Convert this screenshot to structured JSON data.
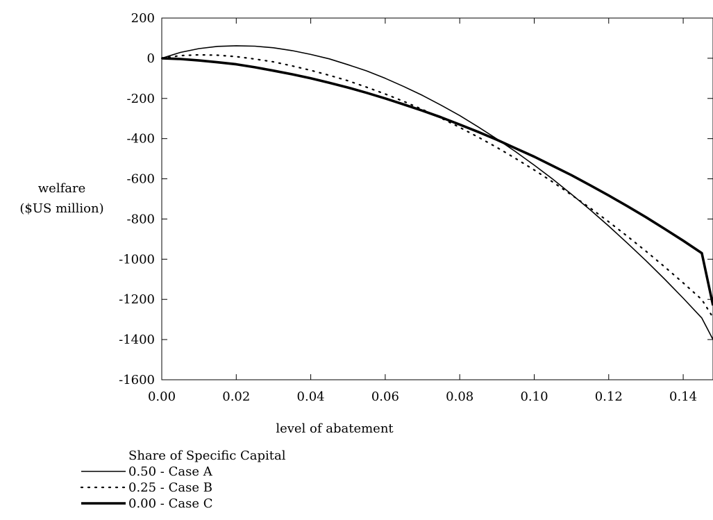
{
  "chart_data": {
    "type": "line",
    "title": "",
    "xlabel": "level of abatement",
    "ylabel_line1": "welfare",
    "ylabel_line2": "($US million)",
    "xlim": [
      0,
      0.148
    ],
    "ylim": [
      -1600,
      200
    ],
    "x_ticks": [
      0.0,
      0.02,
      0.04,
      0.06,
      0.08,
      0.1,
      0.12,
      0.14
    ],
    "x_tick_labels": [
      "0.00",
      "0.02",
      "0.04",
      "0.06",
      "0.08",
      "0.10",
      "0.12",
      "0.14"
    ],
    "y_ticks": [
      200,
      0,
      -200,
      -400,
      -600,
      -800,
      -1000,
      -1200,
      -1400,
      -1600
    ],
    "y_tick_labels": [
      "200",
      "0",
      "-200",
      "-400",
      "-600",
      "-800",
      "-1000",
      "-1200",
      "-1400",
      "-1600"
    ],
    "grid": false,
    "legend": {
      "title": "Share of Specific Capital",
      "placement": "bottom-left"
    },
    "series": [
      {
        "name": "0.50 - Case A",
        "style": "solid",
        "x": [
          0,
          0.005,
          0.01,
          0.015,
          0.02,
          0.025,
          0.03,
          0.035,
          0.04,
          0.045,
          0.05,
          0.055,
          0.06,
          0.065,
          0.07,
          0.075,
          0.08,
          0.085,
          0.09,
          0.095,
          0.1,
          0.105,
          0.11,
          0.115,
          0.12,
          0.125,
          0.13,
          0.135,
          0.14,
          0.145,
          0.148
        ],
        "values": [
          0,
          29,
          48,
          59,
          62,
          60,
          52,
          38,
          19,
          -3,
          -32,
          -63,
          -100,
          -141,
          -185,
          -234,
          -285,
          -342,
          -402,
          -465,
          -532,
          -602,
          -677,
          -754,
          -835,
          -920,
          -1007,
          -1099,
          -1194,
          -1293,
          -1400
        ]
      },
      {
        "name": "0.25 - Case B",
        "style": "dotted",
        "x": [
          0,
          0.005,
          0.01,
          0.015,
          0.02,
          0.025,
          0.03,
          0.035,
          0.04,
          0.045,
          0.05,
          0.055,
          0.06,
          0.065,
          0.07,
          0.075,
          0.08,
          0.085,
          0.09,
          0.095,
          0.1,
          0.105,
          0.11,
          0.115,
          0.12,
          0.125,
          0.13,
          0.135,
          0.14,
          0.145,
          0.148
        ],
        "values": [
          0,
          13,
          17,
          15,
          8,
          -4,
          -18,
          -38,
          -60,
          -85,
          -112,
          -144,
          -178,
          -215,
          -255,
          -298,
          -344,
          -393,
          -444,
          -499,
          -556,
          -616,
          -680,
          -745,
          -814,
          -886,
          -960,
          -1038,
          -1118,
          -1201,
          -1290
        ]
      },
      {
        "name": "0.00 - Case C",
        "style": "thick",
        "x": [
          0,
          0.005,
          0.01,
          0.015,
          0.02,
          0.025,
          0.03,
          0.035,
          0.04,
          0.045,
          0.05,
          0.055,
          0.06,
          0.065,
          0.07,
          0.075,
          0.08,
          0.085,
          0.09,
          0.095,
          0.1,
          0.105,
          0.11,
          0.115,
          0.12,
          0.125,
          0.13,
          0.135,
          0.14,
          0.145,
          0.148
        ],
        "values": [
          0,
          -4,
          -11,
          -20,
          -30,
          -45,
          -62,
          -80,
          -100,
          -122,
          -146,
          -172,
          -200,
          -230,
          -261,
          -294,
          -330,
          -367,
          -406,
          -448,
          -490,
          -536,
          -582,
          -632,
          -683,
          -736,
          -791,
          -849,
          -908,
          -970,
          -1230
        ]
      }
    ]
  }
}
